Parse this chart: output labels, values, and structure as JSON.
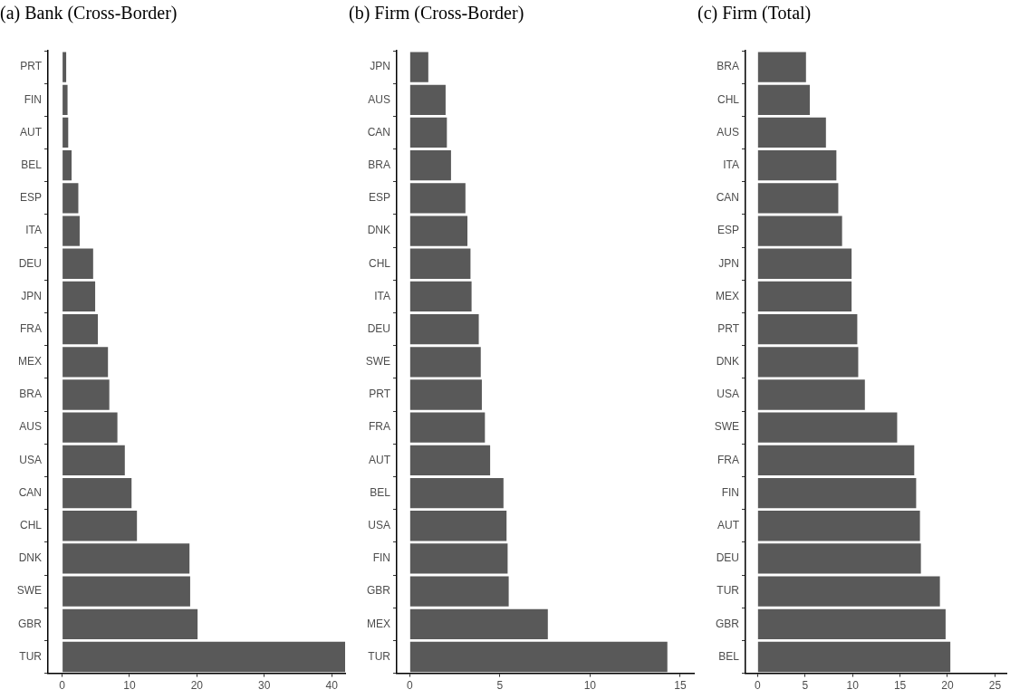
{
  "chart_data": [
    {
      "type": "bar",
      "orientation": "horizontal",
      "title": "(a) Bank (Cross-Border)",
      "color": "#595959",
      "categories": [
        "PRT",
        "FIN",
        "AUT",
        "BEL",
        "ESP",
        "ITA",
        "DEU",
        "JPN",
        "FRA",
        "MEX",
        "BRA",
        "AUS",
        "USA",
        "CAN",
        "CHL",
        "DNK",
        "SWE",
        "GBR",
        "TUR"
      ],
      "values": [
        0.6,
        0.8,
        0.9,
        1.4,
        2.4,
        2.6,
        4.6,
        4.9,
        5.3,
        6.8,
        7.0,
        8.2,
        9.3,
        10.3,
        11.1,
        18.9,
        19.0,
        20.1,
        42.0
      ],
      "xlim": [
        -2.1,
        42
      ],
      "xticks": [
        0,
        10,
        20,
        30,
        40
      ]
    },
    {
      "type": "bar",
      "orientation": "horizontal",
      "title": "(b) Firm (Cross-Border)",
      "color": "#595959",
      "categories": [
        "JPN",
        "AUS",
        "CAN",
        "BRA",
        "ESP",
        "DNK",
        "CHL",
        "ITA",
        "DEU",
        "SWE",
        "PRT",
        "FRA",
        "AUT",
        "BEL",
        "USA",
        "FIN",
        "GBR",
        "MEX",
        "TUR"
      ],
      "values": [
        1.03,
        1.99,
        2.06,
        2.29,
        3.09,
        3.2,
        3.37,
        3.43,
        3.83,
        3.94,
        4.0,
        4.17,
        4.46,
        5.2,
        5.37,
        5.43,
        5.49,
        7.66,
        14.29
      ],
      "xlim": [
        -0.72,
        15.76
      ],
      "xticks": [
        0,
        5,
        10,
        15
      ]
    },
    {
      "type": "bar",
      "orientation": "horizontal",
      "title": "(c) Firm (Total)",
      "color": "#595959",
      "categories": [
        "BRA",
        "CHL",
        "AUS",
        "ITA",
        "CAN",
        "ESP",
        "JPN",
        "MEX",
        "PRT",
        "DNK",
        "USA",
        "SWE",
        "FRA",
        "FIN",
        "AUT",
        "DEU",
        "TUR",
        "GBR",
        "BEL"
      ],
      "values": [
        5.1,
        5.5,
        7.2,
        8.3,
        8.5,
        8.9,
        9.9,
        9.9,
        10.5,
        10.6,
        11.3,
        14.7,
        16.5,
        16.7,
        17.1,
        17.2,
        19.2,
        19.8,
        20.3
      ],
      "xlim": [
        -1.27,
        26.2
      ],
      "xticks": [
        0,
        5,
        10,
        15,
        20,
        25
      ]
    }
  ]
}
